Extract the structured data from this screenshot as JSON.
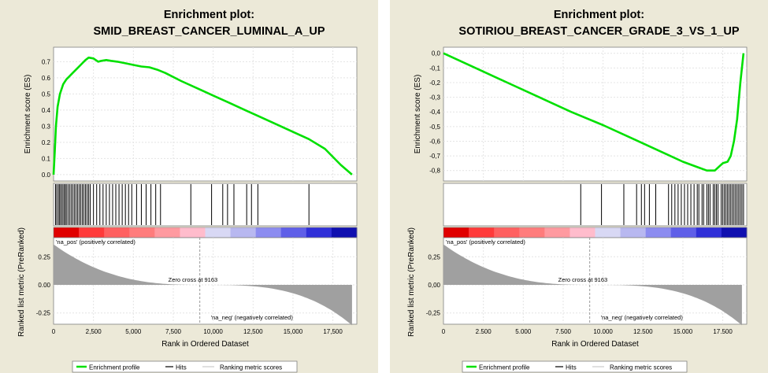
{
  "chart_data": [
    {
      "type": "line",
      "title_line1": "Enrichment plot:",
      "title_line2": "SMID_BREAST_CANCER_LUMINAL_A_UP",
      "ylabel": "Enrichment score (ES)",
      "es_ylim": [
        -0.02,
        0.77
      ],
      "es_yticks": [
        0.0,
        0.1,
        0.2,
        0.3,
        0.4,
        0.5,
        0.6,
        0.7
      ],
      "es_ytick_labels": [
        "0.0",
        "0.1",
        "0.2",
        "0.3",
        "0.4",
        "0.5",
        "0.6",
        "0.7"
      ],
      "es_curve": {
        "x": [
          0,
          80,
          150,
          250,
          400,
          600,
          800,
          1000,
          1200,
          1500,
          1800,
          2000,
          2200,
          2500,
          2800,
          3000,
          3300,
          3600,
          4000,
          4500,
          5000,
          5500,
          6000,
          6500,
          7000,
          8000,
          9000,
          10000,
          11000,
          12000,
          13000,
          14000,
          15000,
          16000,
          17000,
          18000,
          18700
        ],
        "y": [
          0.0,
          0.15,
          0.3,
          0.42,
          0.5,
          0.56,
          0.59,
          0.61,
          0.63,
          0.66,
          0.69,
          0.71,
          0.725,
          0.72,
          0.7,
          0.705,
          0.71,
          0.705,
          0.7,
          0.69,
          0.68,
          0.67,
          0.665,
          0.65,
          0.63,
          0.58,
          0.535,
          0.49,
          0.445,
          0.4,
          0.355,
          0.31,
          0.265,
          0.22,
          0.16,
          0.06,
          0.0
        ]
      },
      "hits": [
        120,
        200,
        300,
        380,
        460,
        550,
        640,
        720,
        800,
        900,
        1000,
        1100,
        1200,
        1300,
        1400,
        1500,
        1600,
        1700,
        1800,
        1900,
        2000,
        2100,
        2200,
        2300,
        2500,
        2700,
        2900,
        3100,
        3300,
        3500,
        3700,
        3900,
        4100,
        4300,
        4500,
        4700,
        4900,
        5200,
        5500,
        5800,
        6100,
        6400,
        6700,
        8600,
        9900,
        10600,
        10900,
        11300,
        12100,
        12400,
        12800,
        16000
      ],
      "metric_ylim": [
        -0.35,
        0.42
      ],
      "metric_yticks": [
        0.25,
        0.0,
        -0.25
      ],
      "metric_ytick_labels": [
        "0.25",
        "0.00",
        "-0.25"
      ],
      "metric_ylabel": "Ranked list metric (PreRanked)",
      "pos_label": "'na_pos' (positively correlated)",
      "neg_label": "'na_neg' (negatively correlated)",
      "zero_cross_label": "Zero cross at 9163",
      "zero_cross": 9163,
      "xlabel": "Rank in Ordered Dataset",
      "xlim": [
        0,
        19000
      ],
      "xticks": [
        0,
        2500,
        5000,
        7500,
        10000,
        12500,
        15000,
        17500
      ],
      "xtick_labels": [
        "0",
        "2,500",
        "5,000",
        "7,500",
        "10,000",
        "12,500",
        "15,000",
        "17,500"
      ],
      "legend": [
        "Enrichment profile",
        "Hits",
        "Ranking metric scores"
      ],
      "colors": {
        "profile": "#00e000",
        "hits": "#000000",
        "metric": "#a0a0a0",
        "pos": "#ff2222",
        "neg": "#2222dd"
      }
    },
    {
      "type": "line",
      "title_line1": "Enrichment plot:",
      "title_line2": "SOTIRIOU_BREAST_CANCER_GRADE_3_VS_1_UP",
      "ylabel": "Enrichment score (ES)",
      "es_ylim": [
        -0.85,
        0.02
      ],
      "es_yticks": [
        0.0,
        -0.1,
        -0.2,
        -0.3,
        -0.4,
        -0.5,
        -0.6,
        -0.7,
        -0.8
      ],
      "es_ytick_labels": [
        "0,0",
        "-0,1",
        "-0,2",
        "-0,3",
        "-0,4",
        "-0,5",
        "-0,6",
        "-0,7",
        "-0,8"
      ],
      "es_curve": {
        "x": [
          0,
          2000,
          4000,
          6000,
          8000,
          10000,
          12000,
          14000,
          15000,
          16000,
          16500,
          17000,
          17300,
          17500,
          17800,
          18000,
          18200,
          18400,
          18600,
          18800
        ],
        "y": [
          0.0,
          -0.1,
          -0.2,
          -0.3,
          -0.4,
          -0.49,
          -0.59,
          -0.69,
          -0.74,
          -0.78,
          -0.8,
          -0.8,
          -0.77,
          -0.75,
          -0.74,
          -0.7,
          -0.6,
          -0.45,
          -0.2,
          0.0
        ]
      },
      "hits": [
        8600,
        9900,
        11300,
        12100,
        12400,
        12600,
        12900,
        13300,
        14100,
        14300,
        14500,
        14700,
        14900,
        15100,
        15300,
        15500,
        15700,
        15900,
        16000,
        16200,
        16300,
        16500,
        16600,
        16700,
        16900,
        17000,
        17100,
        17200,
        17400,
        17500,
        17600,
        17700,
        17800,
        17900,
        18000,
        18100,
        18200,
        18300,
        18400,
        18500,
        18600,
        18700,
        18800
      ],
      "metric_ylim": [
        -0.35,
        0.42
      ],
      "metric_yticks": [
        0.25,
        0.0,
        -0.25
      ],
      "metric_ytick_labels": [
        "0,25",
        "0,00",
        "-0,25"
      ],
      "metric_ylabel": "Ranked list metric (PreRanked)",
      "pos_label": "'na_pos' (positively correlated)",
      "neg_label": "'na_neg' (negatively correlated)",
      "zero_cross_label": "Zero cross at 9163",
      "zero_cross": 9163,
      "xlabel": "Rank in Ordered Dataset",
      "xlim": [
        0,
        19000
      ],
      "xticks": [
        0,
        2500,
        5000,
        7500,
        10000,
        12500,
        15000,
        17500
      ],
      "xtick_labels": [
        "0",
        "2.500",
        "5.000",
        "7.500",
        "10.000",
        "12.500",
        "15.000",
        "17.500"
      ],
      "legend": [
        "Enrichment profile",
        "Hits",
        "Ranking metric scores"
      ],
      "colors": {
        "profile": "#00e000",
        "hits": "#000000",
        "metric": "#a0a0a0",
        "pos": "#ff2222",
        "neg": "#2222dd"
      }
    }
  ]
}
